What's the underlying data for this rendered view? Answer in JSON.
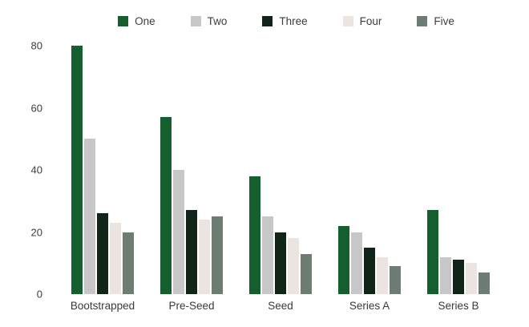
{
  "chart_data": {
    "type": "bar",
    "title": "",
    "xlabel": "",
    "ylabel": "",
    "categories": [
      "Bootstrapped",
      "Pre-Seed",
      "Seed",
      "Series A",
      "Series B"
    ],
    "series": [
      {
        "name": "One",
        "color": "#145f2d",
        "values": [
          80,
          57,
          38,
          22,
          27
        ]
      },
      {
        "name": "Two",
        "color": "#c7c7c7",
        "values": [
          50,
          40,
          25,
          20,
          12
        ]
      },
      {
        "name": "Three",
        "color": "#112419",
        "values": [
          26,
          27,
          20,
          15,
          11
        ]
      },
      {
        "name": "Four",
        "color": "#ece4e0",
        "values": [
          23,
          24,
          18,
          12,
          10
        ]
      },
      {
        "name": "Five",
        "color": "#6e7d73",
        "values": [
          20,
          25,
          13,
          9,
          7
        ]
      }
    ],
    "yticks": [
      0,
      20,
      40,
      60,
      80
    ],
    "ylim": [
      0,
      80
    ],
    "grid": false,
    "legend_position": "top",
    "background_color": "#ffffff",
    "text_color": "#3d3d3d"
  }
}
